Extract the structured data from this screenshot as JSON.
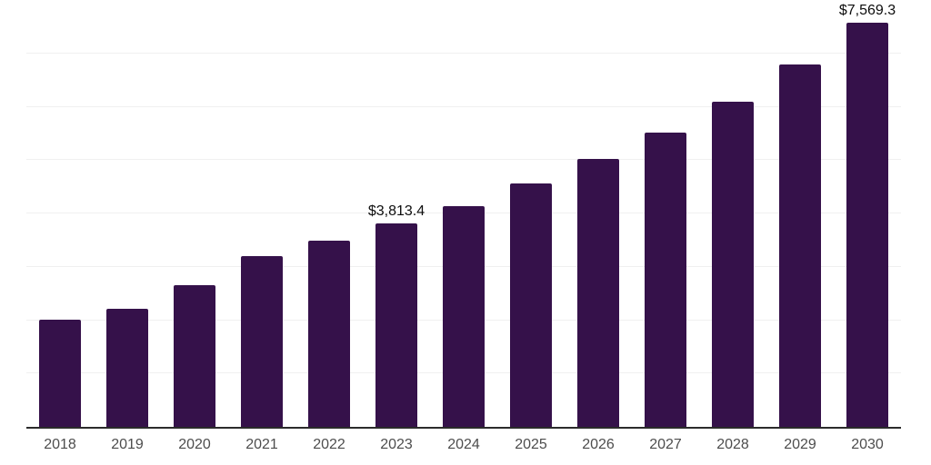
{
  "colors": {
    "background": "#ffffff",
    "bar": "#35114a",
    "axis_line": "#2b2b2b",
    "gridline": "#f0f0f0",
    "tick_label": "#4d4d4d",
    "data_label": "#0d0d0d"
  },
  "chart_data": {
    "type": "bar",
    "title": "",
    "xlabel": "",
    "ylabel": "",
    "categories": [
      "2018",
      "2019",
      "2020",
      "2021",
      "2022",
      "2023",
      "2024",
      "2025",
      "2026",
      "2027",
      "2028",
      "2029",
      "2030"
    ],
    "values": [
      2010,
      2215,
      2650,
      3200,
      3495,
      3813.4,
      4140,
      4565,
      5025,
      5520,
      6100,
      6800,
      7569.3
    ],
    "data_labels": {
      "2023": "$3,813.4",
      "2030": "$7,569.3"
    },
    "ylim": [
      0,
      8000
    ],
    "gridline_step": 1000,
    "grid": true,
    "y_tick_labels_visible": false,
    "legend": false
  }
}
